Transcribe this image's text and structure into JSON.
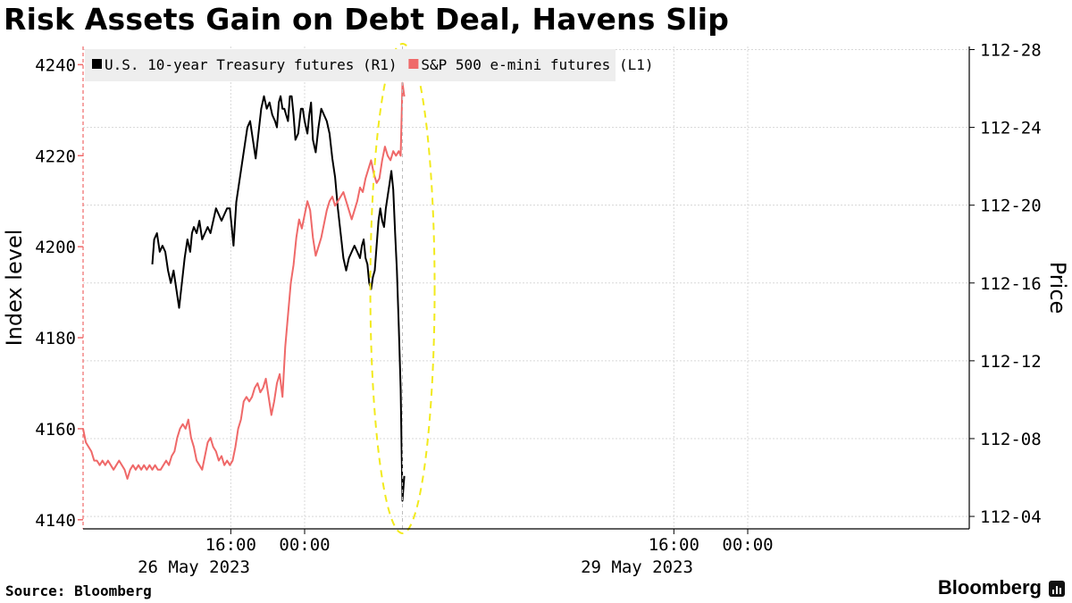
{
  "page": {
    "title": "Risk Assets Gain on Debt Deal, Havens Slip"
  },
  "footer": {
    "source": "Source: Bloomberg",
    "brand": "Bloomberg"
  },
  "colors": {
    "treasury": "#000000",
    "spx": "#ef6969",
    "highlight": "#f2ea1c",
    "grid": "#d8d8d8",
    "legend_bg": "#eeeeee"
  },
  "chart_data": {
    "type": "line",
    "title": "Risk Assets Gain on Debt Deal, Havens Slip",
    "x_axis": {
      "unit": "hours since 26 May 2023 00:00",
      "range": [
        0,
        96
      ],
      "ticks": [
        {
          "x": 16,
          "label": "16:00"
        },
        {
          "x": 24,
          "label": "00:00"
        },
        {
          "x": 64,
          "label": "16:00"
        },
        {
          "x": 72,
          "label": "00:00"
        }
      ],
      "date_labels": [
        {
          "x": 12,
          "label": "26 May 2023"
        },
        {
          "x": 60,
          "label": "29 May 2023"
        }
      ],
      "grid": true
    },
    "y_left": {
      "label": "Index level",
      "range": [
        4138,
        4244
      ],
      "ticks": [
        "4140",
        "4160",
        "4180",
        "4200",
        "4220",
        "4240"
      ]
    },
    "y_right": {
      "label": "Price",
      "range": [
        112.105,
        112.88
      ],
      "tick_values": [
        112.125,
        112.25,
        112.375,
        112.5,
        112.625,
        112.75,
        112.875
      ],
      "ticks": [
        "112-04",
        "112-08",
        "112-12",
        "112-16",
        "112-20",
        "112-24",
        "112-28"
      ]
    },
    "legend": {
      "position": "top-left"
    },
    "series": [
      {
        "name": "U.S. 10-year Treasury futures (R1)",
        "axis": "right",
        "color": "#000000",
        "x": [
          7.5,
          7.7,
          8.0,
          8.3,
          8.6,
          8.9,
          9.2,
          9.5,
          9.8,
          10.1,
          10.4,
          10.7,
          11.0,
          11.3,
          11.6,
          11.8,
          12.0,
          12.3,
          12.6,
          12.9,
          13.2,
          13.5,
          13.8,
          14.1,
          14.4,
          14.7,
          15.0,
          15.3,
          15.6,
          15.9,
          16.1,
          16.3,
          16.6,
          16.9,
          17.2,
          17.5,
          17.8,
          18.1,
          18.4,
          18.7,
          19.0,
          19.3,
          19.6,
          19.9,
          20.2,
          20.5,
          20.8,
          21.0,
          21.2,
          21.4,
          21.6,
          21.8,
          22.0,
          22.2,
          22.4,
          22.6,
          22.8,
          23.0,
          23.3,
          23.6,
          23.8,
          24.0,
          24.3,
          24.5,
          24.7,
          24.9,
          25.2,
          25.5,
          25.8,
          26.1,
          26.4,
          26.7,
          27.0,
          27.3,
          27.6,
          27.9,
          28.2,
          28.5,
          28.8,
          29.1,
          29.4,
          29.7,
          30.0,
          30.2,
          30.4,
          30.6,
          30.8,
          31.0,
          31.2,
          31.4,
          31.6,
          31.8,
          32.0,
          32.2,
          32.4,
          32.6,
          32.8,
          33.0,
          33.2,
          33.4,
          33.6,
          33.8,
          34.0,
          34.2,
          34.4,
          34.6,
          34.8
        ],
        "values": [
          112.53,
          112.57,
          112.58,
          112.55,
          112.56,
          112.55,
          112.52,
          112.5,
          112.52,
          112.49,
          112.46,
          112.5,
          112.54,
          112.57,
          112.55,
          112.58,
          112.59,
          112.58,
          112.6,
          112.57,
          112.58,
          112.59,
          112.58,
          112.6,
          112.62,
          112.61,
          112.6,
          112.61,
          112.62,
          112.62,
          112.59,
          112.56,
          112.63,
          112.66,
          112.69,
          112.72,
          112.75,
          112.76,
          112.73,
          112.7,
          112.74,
          112.78,
          112.8,
          112.78,
          112.79,
          112.77,
          112.76,
          112.75,
          112.79,
          112.8,
          112.78,
          112.78,
          112.77,
          112.76,
          112.8,
          112.8,
          112.77,
          112.73,
          112.74,
          112.78,
          112.78,
          112.76,
          112.74,
          112.77,
          112.79,
          112.73,
          112.71,
          112.75,
          112.78,
          112.77,
          112.76,
          112.74,
          112.7,
          112.67,
          112.62,
          112.58,
          112.54,
          112.52,
          112.54,
          112.55,
          112.56,
          112.55,
          112.54,
          112.56,
          112.57,
          112.54,
          112.53,
          112.5,
          112.49,
          112.51,
          112.52,
          112.56,
          112.6,
          112.62,
          112.6,
          112.59,
          112.62,
          112.64,
          112.66,
          112.68,
          112.65,
          112.58,
          112.52,
          112.43,
          112.33,
          112.15,
          112.19
        ]
      },
      {
        "name": "S&P 500 e-mini futures (L1)",
        "axis": "left",
        "color": "#ef6969",
        "x": [
          0.0,
          0.3,
          0.6,
          0.9,
          1.2,
          1.5,
          1.8,
          2.1,
          2.4,
          2.7,
          3.0,
          3.3,
          3.6,
          3.9,
          4.2,
          4.5,
          4.8,
          5.1,
          5.4,
          5.7,
          6.0,
          6.3,
          6.6,
          6.9,
          7.2,
          7.5,
          7.8,
          8.1,
          8.4,
          8.7,
          9.0,
          9.3,
          9.6,
          9.9,
          10.2,
          10.5,
          10.8,
          11.1,
          11.4,
          11.7,
          12.0,
          12.3,
          12.6,
          12.9,
          13.2,
          13.5,
          13.8,
          14.1,
          14.4,
          14.7,
          15.0,
          15.3,
          15.6,
          15.9,
          16.2,
          16.5,
          16.8,
          17.1,
          17.4,
          17.7,
          18.0,
          18.3,
          18.6,
          18.9,
          19.2,
          19.5,
          19.8,
          20.1,
          20.4,
          20.7,
          21.0,
          21.3,
          21.6,
          21.9,
          22.2,
          22.5,
          22.8,
          23.1,
          23.4,
          23.7,
          24.0,
          24.3,
          24.6,
          24.9,
          25.2,
          25.5,
          25.8,
          26.1,
          26.4,
          26.7,
          27.0,
          27.3,
          27.6,
          27.9,
          28.2,
          28.5,
          28.8,
          29.1,
          29.4,
          29.7,
          30.0,
          30.3,
          30.6,
          30.9,
          31.2,
          31.5,
          31.8,
          32.1,
          32.4,
          32.7,
          33.0,
          33.3,
          33.6,
          33.9,
          34.2,
          34.4,
          34.6,
          34.8
        ],
        "values": [
          4160,
          4157,
          4156,
          4155,
          4153,
          4153,
          4152,
          4153,
          4152,
          4153,
          4152,
          4151,
          4152,
          4153,
          4152,
          4151,
          4149,
          4151,
          4152,
          4151,
          4152,
          4151,
          4152,
          4151,
          4152,
          4151,
          4152,
          4151,
          4151,
          4152,
          4153,
          4152,
          4154,
          4155,
          4158,
          4160,
          4161,
          4160,
          4162,
          4158,
          4156,
          4153,
          4152,
          4151,
          4154,
          4157,
          4158,
          4156,
          4155,
          4153,
          4154,
          4152,
          4153,
          4152,
          4153,
          4156,
          4160,
          4162,
          4166,
          4167,
          4166,
          4167,
          4169,
          4170,
          4168,
          4169,
          4171,
          4167,
          4163,
          4166,
          4170,
          4172,
          4167,
          4178,
          4185,
          4192,
          4196,
          4202,
          4206,
          4204,
          4207,
          4210,
          4208,
          4202,
          4198,
          4200,
          4202,
          4205,
          4208,
          4210,
          4211,
          4209,
          4210,
          4211,
          4212,
          4210,
          4208,
          4206,
          4208,
          4210,
          4213,
          4212,
          4215,
          4217,
          4219,
          4216,
          4214,
          4215,
          4219,
          4222,
          4220,
          4219,
          4221,
          4220,
          4221,
          4220,
          4236,
          4233
        ]
      }
    ],
    "annotations": [
      {
        "shape": "dashed-ellipse",
        "x_center": 34.6,
        "note": ""
      }
    ]
  }
}
